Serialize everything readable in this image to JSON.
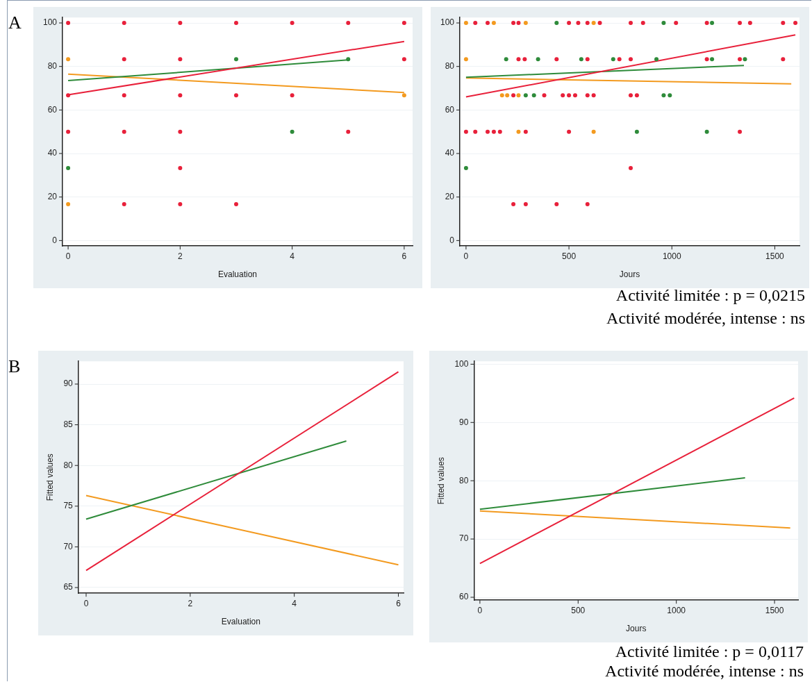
{
  "chart_data": [
    {
      "type": "scatter",
      "xlabel": "Evaluation",
      "xlim": [
        -0.1,
        6.15
      ],
      "ylim": [
        -2.5,
        102.5
      ],
      "xticks": [
        0,
        2,
        4,
        6
      ],
      "yticks": [
        0,
        20,
        40,
        60,
        80,
        100
      ],
      "grid": "y",
      "marker": "circle",
      "annotations": [
        "A"
      ],
      "series": [
        {
          "color": "#e8203a",
          "x": [
            0,
            1,
            2,
            3,
            4,
            5,
            6,
            1,
            2,
            6,
            0,
            1,
            2,
            3,
            4,
            0,
            1,
            2,
            5,
            2,
            1,
            2,
            3
          ],
          "values": [
            100,
            100,
            100,
            100,
            100,
            100,
            100,
            83.3,
            83.3,
            83.3,
            66.7,
            66.7,
            66.7,
            66.7,
            66.7,
            50,
            50,
            50,
            50,
            33.3,
            16.7,
            16.7,
            16.7
          ]
        },
        {
          "color": "#2e8b3a",
          "x": [
            3,
            5,
            4,
            0
          ],
          "values": [
            83.3,
            83.3,
            50,
            33.3
          ]
        },
        {
          "color": "#f39a1f",
          "x": [
            0,
            0,
            6
          ],
          "values": [
            83.3,
            16.7,
            66.7
          ]
        },
        {
          "type": "line",
          "marker": "none",
          "color": "#e8203a",
          "x": [
            0,
            6
          ],
          "values": [
            67,
            91.5
          ]
        },
        {
          "type": "line",
          "marker": "none",
          "color": "#2e8b3a",
          "x": [
            0,
            5
          ],
          "values": [
            73.5,
            83
          ]
        },
        {
          "type": "line",
          "marker": "none",
          "color": "#f39a1f",
          "x": [
            0,
            6
          ],
          "values": [
            76.5,
            68
          ]
        }
      ]
    },
    {
      "type": "scatter",
      "xlabel": "Jours",
      "xlim": [
        -30,
        1620
      ],
      "ylim": [
        -2.5,
        102.5
      ],
      "xticks": [
        0,
        500,
        1000,
        1500
      ],
      "yticks": [
        0,
        20,
        40,
        60,
        80,
        100
      ],
      "grid": "y",
      "marker": "circle",
      "annotations": [
        "Activité limitée : p = 0,0215",
        "Activité modérée, intense : ns"
      ],
      "series": [
        {
          "color": "#e8203a",
          "x": [
            45,
            105,
            230,
            255,
            500,
            545,
            590,
            650,
            800,
            860,
            1020,
            1170,
            1330,
            1380,
            1540,
            1600,
            255,
            285,
            440,
            590,
            745,
            800,
            1170,
            1330,
            1540,
            230,
            380,
            470,
            500,
            530,
            590,
            620,
            800,
            830,
            0,
            45,
            105,
            135,
            165,
            290,
            500,
            1330,
            800,
            230,
            290,
            440,
            590
          ],
          "values": [
            100,
            100,
            100,
            100,
            100,
            100,
            100,
            100,
            100,
            100,
            100,
            100,
            100,
            100,
            100,
            100,
            83.3,
            83.3,
            83.3,
            83.3,
            83.3,
            83.3,
            83.3,
            83.3,
            83.3,
            66.7,
            66.7,
            66.7,
            66.7,
            66.7,
            66.7,
            66.7,
            66.7,
            66.7,
            50,
            50,
            50,
            50,
            50,
            50,
            50,
            50,
            33.3,
            16.7,
            16.7,
            16.7,
            16.7
          ]
        },
        {
          "color": "#2e8b3a",
          "x": [
            440,
            960,
            1195,
            195,
            350,
            560,
            715,
            925,
            1195,
            1355,
            290,
            330,
            960,
            990,
            830,
            1170,
            0
          ],
          "values": [
            100,
            100,
            100,
            83.3,
            83.3,
            83.3,
            83.3,
            83.3,
            83.3,
            83.3,
            66.7,
            66.7,
            66.7,
            66.7,
            50,
            50,
            33.3
          ]
        },
        {
          "color": "#f39a1f",
          "x": [
            0,
            135,
            290,
            620,
            0,
            175,
            200,
            255,
            255,
            620
          ],
          "values": [
            100,
            100,
            100,
            100,
            83.3,
            66.7,
            66.7,
            66.7,
            50,
            50
          ]
        },
        {
          "type": "line",
          "marker": "none",
          "color": "#e8203a",
          "x": [
            0,
            1600
          ],
          "values": [
            66,
            94.5
          ]
        },
        {
          "type": "line",
          "marker": "none",
          "color": "#2e8b3a",
          "x": [
            0,
            1350
          ],
          "values": [
            75,
            80.5
          ]
        },
        {
          "type": "line",
          "marker": "none",
          "color": "#f39a1f",
          "x": [
            0,
            1580
          ],
          "values": [
            74.7,
            72
          ]
        }
      ]
    },
    {
      "type": "line",
      "xlabel": "Evaluation",
      "ylabel": "Fitted values",
      "xlim": [
        -0.15,
        6.1
      ],
      "ylim": [
        64.3,
        92.8
      ],
      "xticks": [
        0,
        2,
        4,
        6
      ],
      "yticks": [
        65,
        70,
        75,
        80,
        85,
        90
      ],
      "grid": "y",
      "marker": "none",
      "annotations": [
        "B"
      ],
      "series": [
        {
          "color": "#e8203a",
          "x": [
            0,
            6
          ],
          "values": [
            67.1,
            91.5
          ]
        },
        {
          "color": "#2e8b3a",
          "x": [
            0,
            5
          ],
          "values": [
            73.4,
            83
          ]
        },
        {
          "color": "#f39a1f",
          "x": [
            0,
            6
          ],
          "values": [
            76.3,
            67.8
          ]
        }
      ]
    },
    {
      "type": "line",
      "xlabel": "Jours",
      "ylabel": "Fitted values",
      "xlim": [
        -30,
        1620
      ],
      "ylim": [
        59.5,
        100.5
      ],
      "xticks": [
        0,
        500,
        1000,
        1500
      ],
      "yticks": [
        60,
        70,
        80,
        90,
        100
      ],
      "grid": "y",
      "marker": "none",
      "annotations": [
        "Activité limitée : p = 0,0117",
        "Activité modérée, intense : ns"
      ],
      "series": [
        {
          "color": "#e8203a",
          "x": [
            0,
            1600
          ],
          "values": [
            65.8,
            94.2
          ]
        },
        {
          "color": "#2e8b3a",
          "x": [
            0,
            1350
          ],
          "values": [
            75.1,
            80.5
          ]
        },
        {
          "color": "#f39a1f",
          "x": [
            0,
            1580
          ],
          "values": [
            74.8,
            71.9
          ]
        }
      ]
    }
  ]
}
